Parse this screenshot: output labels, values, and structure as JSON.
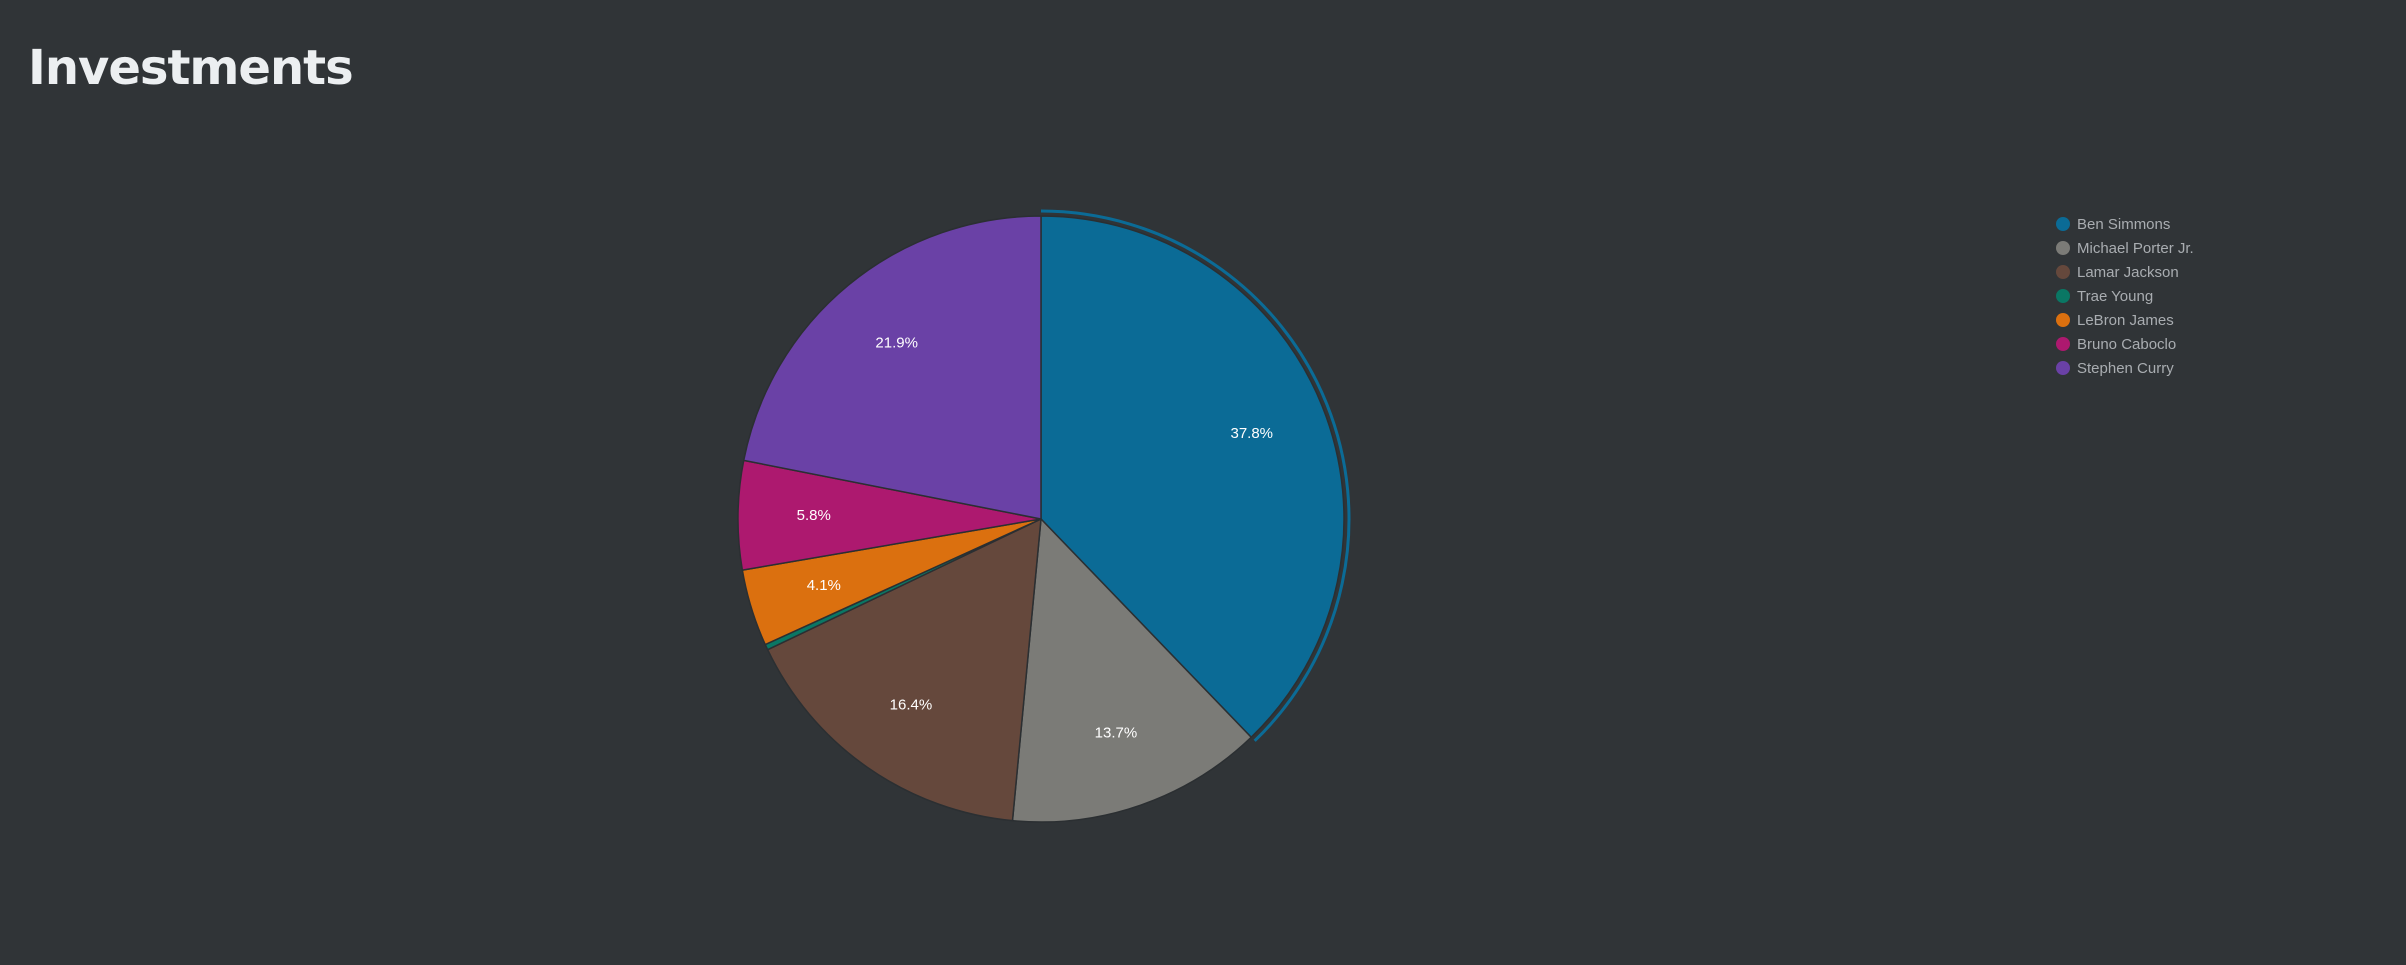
{
  "page": {
    "title": "Investments",
    "background": "#303437"
  },
  "chart_data": {
    "type": "pie",
    "title": "Investments",
    "legend_position": "right",
    "highlighted_slice": "Ben Simmons",
    "slices": [
      {
        "name": "Ben Simmons",
        "percent": 37.8,
        "label": "37.8%",
        "color": "#0b6b96"
      },
      {
        "name": "Michael Porter Jr.",
        "percent": 13.7,
        "label": "13.7%",
        "color": "#7b7b77"
      },
      {
        "name": "Lamar Jackson",
        "percent": 16.4,
        "label": "16.4%",
        "color": "#65483c"
      },
      {
        "name": "Trae Young",
        "percent": 0.3,
        "label": "",
        "color": "#0a7764"
      },
      {
        "name": "LeBron James",
        "percent": 4.1,
        "label": "4.1%",
        "color": "#db700f"
      },
      {
        "name": "Bruno Caboclo",
        "percent": 5.8,
        "label": "5.8%",
        "color": "#ad196f"
      },
      {
        "name": "Stephen Curry",
        "percent": 21.9,
        "label": "21.9%",
        "color": "#6a41a6"
      }
    ]
  }
}
